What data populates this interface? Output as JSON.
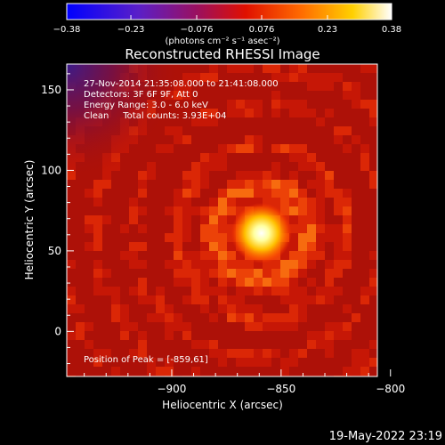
{
  "chart_data": {
    "type": "heatmap",
    "title": "Reconstructed RHESSI Image",
    "xlabel": "Heliocentric X (arcsec)",
    "ylabel": "Heliocentric Y (arcsec)",
    "xlim": [
      -948,
      -806
    ],
    "ylim": [
      -28,
      166
    ],
    "x_ticks": [
      -900,
      -850,
      -800
    ],
    "x_tick_labels": [
      "−900",
      "−850",
      "−800"
    ],
    "y_ticks": [
      0,
      50,
      100,
      150
    ],
    "y_tick_labels": [
      "0",
      "50",
      "100",
      "150"
    ],
    "colorbar": {
      "range": [
        -0.38,
        0.38
      ],
      "ticks": [
        -0.38,
        -0.23,
        -0.076,
        0.076,
        0.23,
        0.38
      ],
      "tick_labels": [
        "−0.38",
        "−0.23",
        "−0.076",
        "0.076",
        "0.23",
        "0.38"
      ],
      "unit_label": "(photons cm⁻² s⁻¹ asec⁻²)",
      "colormap": "blue-purple-red-orange-yellow-white"
    },
    "annotations": [
      "27-Nov-2014 21:35:08.000 to 21:41:08.000",
      "Detectors: 3F 6F 9F, Att 0",
      "Energy Range: 3.0 - 6.0 keV",
      "Clean     Total counts: 3.93E+04"
    ],
    "peak_label": "Position of Peak = [-859,61]",
    "peak": {
      "x": -859,
      "y": 61
    },
    "grid": false
  },
  "footer": {
    "timestamp": "19-May-2022 23:19"
  }
}
